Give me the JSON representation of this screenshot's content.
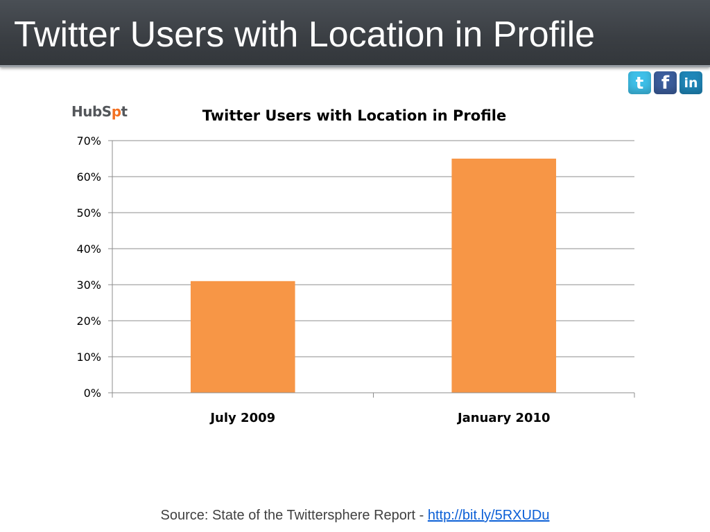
{
  "slide": {
    "title": "Twitter Users with Location in Profile"
  },
  "social": {
    "twitter_glyph": "t",
    "facebook_glyph": "f",
    "linkedin_glyph": "in",
    "icons": [
      "twitter-icon",
      "facebook-icon",
      "linkedin-icon"
    ]
  },
  "logo": {
    "text_a": "HubS",
    "text_b": "p",
    "text_c": "t",
    "mark": "sprocket-icon"
  },
  "chart_data": {
    "type": "bar",
    "title": "Twitter Users with Location in Profile",
    "categories": [
      "July 2009",
      "January 2010"
    ],
    "values": [
      31,
      65
    ],
    "ylim": [
      0,
      70
    ],
    "yticks": [
      0,
      10,
      20,
      30,
      40,
      50,
      60,
      70
    ],
    "ytick_labels": [
      "0%",
      "10%",
      "20%",
      "30%",
      "40%",
      "50%",
      "60%",
      "70%"
    ],
    "xlabel": "",
    "ylabel": "",
    "grid": true,
    "bar_color": "#f79646"
  },
  "footer": {
    "source_text": "Source: State of the Twittersphere Report - ",
    "link_text": "http://bit.ly/5RXUDu"
  }
}
